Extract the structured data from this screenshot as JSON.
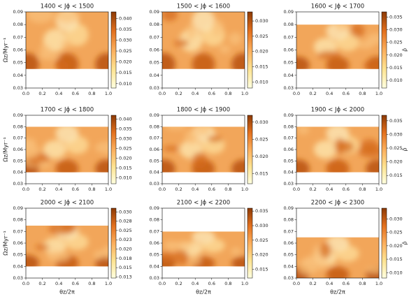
{
  "chart_data": [
    {
      "type": "heatmap",
      "title": "1400 < Jϕ < 1500",
      "ylabel": "Ωz/Myr⁻¹",
      "xlim": [
        0,
        1
      ],
      "xticks": [
        {
          "value": 0,
          "label": "0.0"
        },
        0.2,
        0.4,
        0.6,
        0.8,
        {
          "value": 1,
          "label": "1.0"
        }
      ],
      "ylim": [
        0.03,
        0.09
      ],
      "yticks": [
        0.03,
        0.04,
        0.05,
        0.06,
        0.07,
        0.08,
        0.09
      ],
      "data_ylim": [
        0.045,
        0.09
      ],
      "clim": [
        0.008,
        0.043
      ],
      "cticks": [
        {
          "value": 0.01,
          "label": "0.010"
        },
        0.015,
        {
          "value": 0.02,
          "label": "0.020"
        },
        0.025,
        {
          "value": 0.03,
          "label": "0.030"
        },
        0.035,
        {
          "value": 0.04,
          "label": "0.040"
        }
      ]
    },
    {
      "type": "heatmap",
      "title": "1500 < Jϕ < 1600",
      "xlim": [
        0,
        1
      ],
      "xticks": [
        {
          "value": 0,
          "label": "0.0"
        },
        0.2,
        0.4,
        0.6,
        0.8,
        {
          "value": 1,
          "label": "1.0"
        }
      ],
      "ylim": [
        0.03,
        0.09
      ],
      "yticks": [
        0.03,
        0.04,
        0.05,
        0.06,
        0.07,
        0.08,
        0.09
      ],
      "data_ylim": [
        0.045,
        0.09
      ],
      "clim": [
        0.008,
        0.033
      ],
      "cticks": [
        {
          "value": 0.01,
          "label": "0.010"
        },
        0.015,
        {
          "value": 0.02,
          "label": "0.020"
        },
        0.025,
        {
          "value": 0.03,
          "label": "0.030"
        }
      ]
    },
    {
      "type": "heatmap",
      "title": "1600 < Jϕ < 1700",
      "clabel": "ρ̂",
      "xlim": [
        0,
        1
      ],
      "xticks": [
        {
          "value": 0,
          "label": "0.0"
        },
        0.2,
        0.4,
        0.6,
        0.8,
        {
          "value": 1,
          "label": "1.0"
        }
      ],
      "ylim": [
        0.03,
        0.09
      ],
      "yticks": [
        0.03,
        0.04,
        0.05,
        0.06,
        0.07,
        0.08,
        0.09
      ],
      "data_ylim": [
        0.045,
        0.08
      ],
      "clim": [
        0.007,
        0.037
      ],
      "cticks": [
        {
          "value": 0.01,
          "label": "0.010"
        },
        0.015,
        {
          "value": 0.02,
          "label": "0.020"
        },
        0.025,
        {
          "value": 0.03,
          "label": "0.030"
        },
        0.035
      ]
    },
    {
      "type": "heatmap",
      "title": "1700 < Jϕ < 1800",
      "ylabel": "Ωz/Myr⁻¹",
      "xlim": [
        0,
        1
      ],
      "xticks": [
        {
          "value": 0,
          "label": "0.0"
        },
        0.2,
        0.4,
        0.6,
        0.8,
        {
          "value": 1,
          "label": "1.0"
        }
      ],
      "ylim": [
        0.03,
        0.09
      ],
      "yticks": [
        0.03,
        0.04,
        0.05,
        0.06,
        0.07,
        0.08,
        0.09
      ],
      "data_ylim": [
        0.04,
        0.08
      ],
      "clim": [
        0.007,
        0.042
      ],
      "cticks": [
        {
          "value": 0.01,
          "label": "0.010"
        },
        0.015,
        {
          "value": 0.02,
          "label": "0.020"
        },
        0.025,
        {
          "value": 0.03,
          "label": "0.030"
        },
        0.035,
        {
          "value": 0.04,
          "label": "0.040"
        }
      ]
    },
    {
      "type": "heatmap",
      "title": "1800 < Jϕ < 1900",
      "xlim": [
        0,
        1
      ],
      "xticks": [
        {
          "value": 0,
          "label": "0.0"
        },
        0.2,
        0.4,
        0.6,
        0.8,
        {
          "value": 1,
          "label": "1.0"
        }
      ],
      "ylim": [
        0.03,
        0.09
      ],
      "yticks": [
        0.03,
        0.04,
        0.05,
        0.06,
        0.07,
        0.08,
        0.09
      ],
      "data_ylim": [
        0.04,
        0.08
      ],
      "clim": [
        0.012,
        0.032
      ],
      "cticks": [
        0.015,
        {
          "value": 0.02,
          "label": "0.020"
        },
        0.025,
        {
          "value": 0.03,
          "label": "0.030"
        }
      ]
    },
    {
      "type": "heatmap",
      "title": "1900 < Jϕ < 2000",
      "clabel": "ρ̂",
      "xlim": [
        0,
        1
      ],
      "xticks": [
        {
          "value": 0,
          "label": "0.0"
        },
        0.2,
        0.4,
        0.6,
        0.8,
        {
          "value": 1,
          "label": "1.0"
        }
      ],
      "ylim": [
        0.03,
        0.09
      ],
      "yticks": [
        0.03,
        0.04,
        0.05,
        0.06,
        0.07,
        0.08,
        0.09
      ],
      "data_ylim": [
        0.04,
        0.08
      ],
      "clim": [
        0.012,
        0.037
      ],
      "cticks": [
        0.015,
        {
          "value": 0.02,
          "label": "0.020"
        },
        0.025,
        {
          "value": 0.03,
          "label": "0.030"
        },
        0.035
      ]
    },
    {
      "type": "heatmap",
      "title": "2000 < Jϕ < 2100",
      "ylabel": "Ωz/Myr⁻¹",
      "xlabel": "θz/2π",
      "xlim": [
        0,
        1
      ],
      "xticks": [
        {
          "value": 0,
          "label": "0.0"
        },
        0.2,
        0.4,
        0.6,
        0.8,
        {
          "value": 1,
          "label": "1.0"
        }
      ],
      "ylim": [
        0.03,
        0.09
      ],
      "yticks": [
        0.03,
        0.04,
        0.05,
        0.06,
        0.07,
        0.08,
        0.09
      ],
      "data_ylim": [
        0.04,
        0.075
      ],
      "clim": [
        0.0122,
        0.031
      ],
      "cticks": [
        {
          "value": 0.0125,
          "label": "0.013"
        },
        0.015,
        {
          "value": 0.0175,
          "label": "0.018"
        },
        {
          "value": 0.02,
          "label": "0.020"
        },
        {
          "value": 0.0225,
          "label": "0.023"
        },
        0.025,
        {
          "value": 0.0275,
          "label": "0.028"
        },
        {
          "value": 0.03,
          "label": "0.030"
        }
      ]
    },
    {
      "type": "heatmap",
      "title": "2100 < Jϕ < 2200",
      "xlabel": "θz/2π",
      "xlim": [
        0,
        1
      ],
      "xticks": [
        {
          "value": 0,
          "label": "0.0"
        },
        0.2,
        0.4,
        0.6,
        0.8,
        {
          "value": 1,
          "label": "1.0"
        }
      ],
      "ylim": [
        0.03,
        0.09
      ],
      "yticks": [
        0.03,
        0.04,
        0.05,
        0.06,
        0.07,
        0.08,
        0.09
      ],
      "data_ylim": [
        0.04,
        0.07
      ],
      "clim": [
        0.012,
        0.036
      ],
      "cticks": [
        0.015,
        {
          "value": 0.02,
          "label": "0.020"
        },
        0.025,
        {
          "value": 0.03,
          "label": "0.030"
        },
        0.035
      ]
    },
    {
      "type": "heatmap",
      "title": "2200 < Jϕ < 2300",
      "xlabel": "θz/2π",
      "clabel": "ρ̂",
      "xlim": [
        0,
        1
      ],
      "xticks": [
        {
          "value": 0,
          "label": "0.0"
        },
        0.2,
        0.4,
        0.6,
        0.8,
        {
          "value": 1,
          "label": "1.0"
        }
      ],
      "ylim": [
        0.03,
        0.09
      ],
      "yticks": [
        0.03,
        0.04,
        0.05,
        0.06,
        0.07,
        0.08,
        0.09
      ],
      "data_ylim": [
        0.03,
        0.065
      ],
      "clim": [
        0.008,
        0.034
      ],
      "cticks": [
        {
          "value": 0.01,
          "label": "0.010"
        },
        0.015,
        {
          "value": 0.02,
          "label": "0.020"
        },
        0.025,
        {
          "value": 0.03,
          "label": "0.030"
        }
      ]
    }
  ]
}
